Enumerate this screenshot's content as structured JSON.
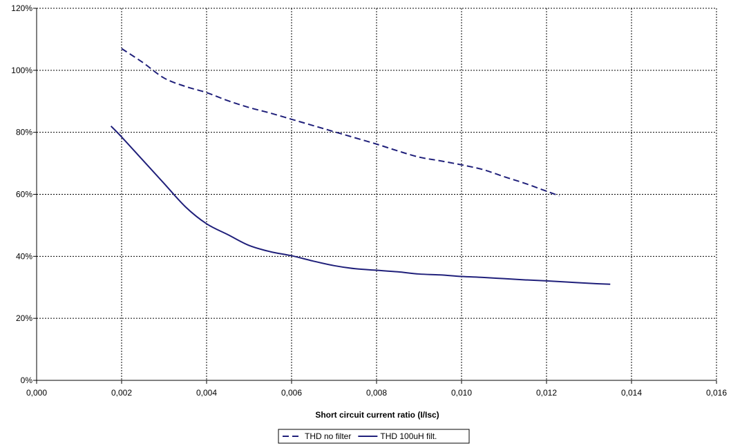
{
  "chart_data": {
    "type": "line",
    "title": "",
    "xlabel": "Short circuit current ratio (I/Isc)",
    "ylabel": "",
    "xlim": [
      0,
      0.016
    ],
    "ylim": [
      0,
      120
    ],
    "xticks": [
      0,
      0.002,
      0.004,
      0.006,
      0.008,
      0.01,
      0.012,
      0.014,
      0.016
    ],
    "xtick_labels": [
      "0,000",
      "0,002",
      "0,004",
      "0,006",
      "0,008",
      "0,010",
      "0,012",
      "0,014",
      "0,016"
    ],
    "yticks": [
      0,
      20,
      40,
      60,
      80,
      100,
      120
    ],
    "ytick_labels": [
      "0%",
      "20%",
      "40%",
      "60%",
      "80%",
      "100%",
      "120%"
    ],
    "grid": true,
    "legend_position": "bottom",
    "series": [
      {
        "name": "THD no filter",
        "style": "dashed",
        "color": "#1f1f7a",
        "x": [
          0.002,
          0.0025,
          0.003,
          0.0035,
          0.004,
          0.0045,
          0.005,
          0.0055,
          0.006,
          0.0065,
          0.007,
          0.0075,
          0.008,
          0.0085,
          0.009,
          0.0095,
          0.01,
          0.0105,
          0.011,
          0.0115,
          0.012,
          0.0123
        ],
        "y": [
          107,
          102.5,
          97.5,
          94.8,
          92.8,
          90.2,
          88.0,
          86.2,
          84.2,
          82.2,
          80.2,
          78.2,
          76.2,
          74.0,
          72.0,
          70.8,
          69.5,
          68.0,
          65.7,
          63.5,
          61.0,
          59.5
        ]
      },
      {
        "name": "THD 100uH filt.",
        "style": "solid",
        "color": "#1f1f7a",
        "x": [
          0.00175,
          0.002,
          0.0025,
          0.003,
          0.0035,
          0.004,
          0.0045,
          0.005,
          0.0055,
          0.006,
          0.0065,
          0.007,
          0.0075,
          0.008,
          0.0085,
          0.009,
          0.0095,
          0.01,
          0.0105,
          0.011,
          0.0115,
          0.012,
          0.0125,
          0.013,
          0.0135
        ],
        "y": [
          82,
          78.5,
          71.0,
          63.5,
          56.0,
          50.5,
          47.0,
          43.5,
          41.5,
          40.2,
          38.5,
          37.0,
          36.0,
          35.5,
          35.0,
          34.3,
          34.0,
          33.5,
          33.2,
          32.8,
          32.4,
          32.1,
          31.7,
          31.3,
          31.0
        ]
      }
    ]
  }
}
